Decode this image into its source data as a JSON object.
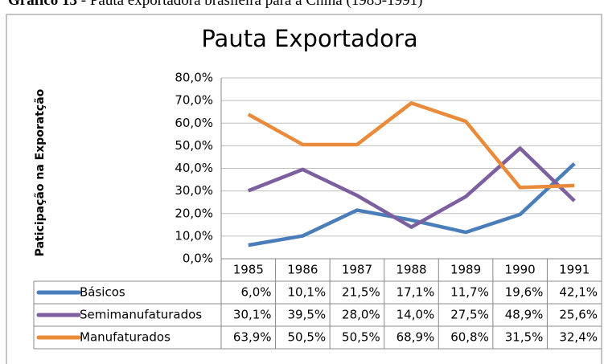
{
  "caption": {
    "label": "Gráfico 13",
    "text": " - Pauta exportadora brasileira para a China (1985-1991)"
  },
  "chart_data": {
    "type": "line",
    "title": "Pauta Exportadora",
    "y_label": "Paticipação na Exporatção",
    "categories": [
      "1985",
      "1986",
      "1987",
      "1988",
      "1989",
      "1990",
      "1991"
    ],
    "series": [
      {
        "name": "Básicos",
        "color": "#4a7ebb",
        "values": [
          6.0,
          10.1,
          21.5,
          17.1,
          11.7,
          19.6,
          42.1
        ],
        "value_labels": [
          "6,0%",
          "10,1%",
          "21,5%",
          "17,1%",
          "11,7%",
          "19,6%",
          "42,1%"
        ]
      },
      {
        "name": "Semimanufaturados",
        "color": "#7d5fa0",
        "values": [
          30.1,
          39.5,
          28.0,
          14.0,
          27.5,
          48.9,
          25.6
        ],
        "value_labels": [
          "30,1%",
          "39,5%",
          "28,0%",
          "14,0%",
          "27,5%",
          "48,9%",
          "25,6%"
        ]
      },
      {
        "name": "Manufaturados",
        "color": "#e98b3a",
        "values": [
          63.9,
          50.5,
          50.5,
          68.9,
          60.8,
          31.5,
          32.4
        ],
        "value_labels": [
          "63,9%",
          "50,5%",
          "50,5%",
          "68,9%",
          "60,8%",
          "31,5%",
          "32,4%"
        ]
      }
    ],
    "ylim": [
      0,
      80
    ],
    "yticks": [
      {
        "value": 0,
        "label": "0,0%"
      },
      {
        "value": 10,
        "label": "10,0%"
      },
      {
        "value": 20,
        "label": "20,0%"
      },
      {
        "value": 30,
        "label": "30,0%"
      },
      {
        "value": 40,
        "label": "40,0%"
      },
      {
        "value": 50,
        "label": "50,0%"
      },
      {
        "value": 60,
        "label": "60,0%"
      },
      {
        "value": 70,
        "label": "70,0%"
      },
      {
        "value": 80,
        "label": "80,0%"
      }
    ],
    "grid": true
  }
}
